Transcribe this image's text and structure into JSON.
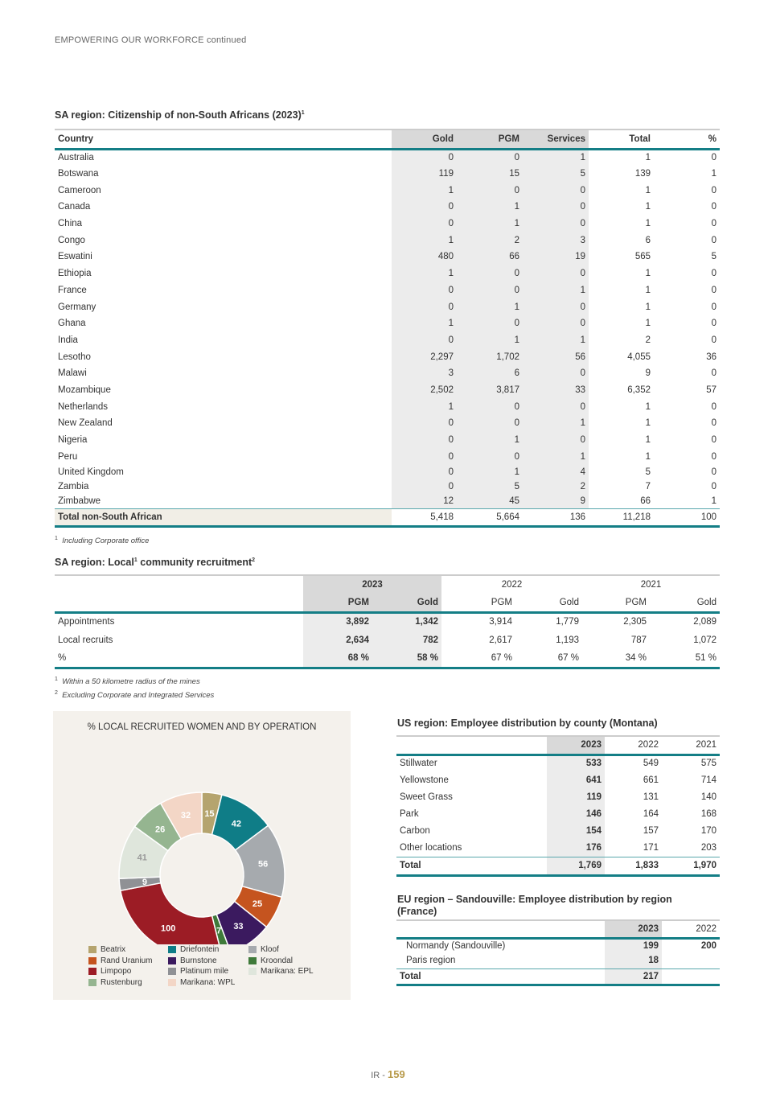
{
  "running_header": "EMPOWERING OUR WORKFORCE continued",
  "citizenship": {
    "title": "SA region: Citizenship of non-South Africans (2023)",
    "title_sup": "1",
    "headers": [
      "Country",
      "Gold",
      "PGM",
      "Services",
      "Total",
      "%"
    ],
    "rows": [
      [
        "Australia",
        "0",
        "0",
        "1",
        "1",
        "0"
      ],
      [
        "Botswana",
        "119",
        "15",
        "5",
        "139",
        "1"
      ],
      [
        "Cameroon",
        "1",
        "0",
        "0",
        "1",
        "0"
      ],
      [
        "Canada",
        "0",
        "1",
        "0",
        "1",
        "0"
      ],
      [
        "China",
        "0",
        "1",
        "0",
        "1",
        "0"
      ],
      [
        "Congo",
        "1",
        "2",
        "3",
        "6",
        "0"
      ],
      [
        "Eswatini",
        "480",
        "66",
        "19",
        "565",
        "5"
      ],
      [
        "Ethiopia",
        "1",
        "0",
        "0",
        "1",
        "0"
      ],
      [
        "France",
        "0",
        "0",
        "1",
        "1",
        "0"
      ],
      [
        "Germany",
        "0",
        "1",
        "0",
        "1",
        "0"
      ],
      [
        "Ghana",
        "1",
        "0",
        "0",
        "1",
        "0"
      ],
      [
        "India",
        "0",
        "1",
        "1",
        "2",
        "0"
      ],
      [
        "Lesotho",
        "2,297",
        "1,702",
        "56",
        "4,055",
        "36"
      ],
      [
        "Malawi",
        "3",
        "6",
        "0",
        "9",
        "0"
      ],
      [
        "Mozambique",
        "2,502",
        "3,817",
        "33",
        "6,352",
        "57"
      ],
      [
        "Netherlands",
        "1",
        "0",
        "0",
        "1",
        "0"
      ],
      [
        "New Zealand",
        "0",
        "0",
        "1",
        "1",
        "0"
      ],
      [
        "Nigeria",
        "0",
        "1",
        "0",
        "1",
        "0"
      ],
      [
        "Peru",
        "0",
        "0",
        "1",
        "1",
        "0"
      ],
      [
        "United Kingdom",
        "0",
        "1",
        "4",
        "5",
        "0"
      ],
      [
        "Zambia",
        "0",
        "5",
        "2",
        "7",
        "0"
      ],
      [
        "Zimbabwe",
        "12",
        "45",
        "9",
        "66",
        "1"
      ]
    ],
    "total": [
      "Total non-South African",
      "5,418",
      "5,664",
      "136",
      "11,218",
      "100"
    ],
    "footnote_num": "1",
    "footnote": "Including Corporate office"
  },
  "local": {
    "title_a": "SA region: Local",
    "sup1": "1",
    "title_b": " community recruitment",
    "sup2": "2",
    "years": [
      "2023",
      "2022",
      "2021"
    ],
    "subheaders": [
      "PGM",
      "Gold",
      "PGM",
      "Gold",
      "PGM",
      "Gold"
    ],
    "rows": [
      [
        "Appointments",
        "3,892",
        "1,342",
        "3,914",
        "1,779",
        "2,305",
        "2,089"
      ],
      [
        "Local recruits",
        "2,634",
        "782",
        "2,617",
        "1,193",
        "787",
        "1,072"
      ],
      [
        "%",
        "68 %",
        "58 %",
        "67 %",
        "67 %",
        "34 %",
        "51 %"
      ]
    ],
    "footnotes": [
      {
        "n": "1",
        "t": "Within a 50 kilometre radius of the mines"
      },
      {
        "n": "2",
        "t": "Excluding Corporate and Integrated Services"
      }
    ]
  },
  "chart_data": {
    "type": "pie",
    "variant": "donut",
    "title": "% LOCAL RECRUITED WOMEN AND BY OPERATION",
    "slices": [
      {
        "label": "Beatrix",
        "value": 15,
        "color": "#b5a46e"
      },
      {
        "label": "Driefontein",
        "value": 42,
        "color": "#0f7d87"
      },
      {
        "label": "Kloof",
        "value": 56,
        "color": "#a6aaae"
      },
      {
        "label": "Rand Uranium",
        "value": 25,
        "color": "#c5541f"
      },
      {
        "label": "Burnstone",
        "value": 33,
        "color": "#3b1a5f"
      },
      {
        "label": "Kroondal",
        "value": 7,
        "color": "#3f7a3a"
      },
      {
        "label": "Limpopo",
        "value": 100,
        "color": "#9c1c25"
      },
      {
        "label": "Platinum mile",
        "value": 9,
        "color": "#8f9195"
      },
      {
        "label": "Marikana: EPL",
        "value": 41,
        "color": "#dfe6dc"
      },
      {
        "label": "Rustenburg",
        "value": 26,
        "color": "#95b590"
      },
      {
        "label": "Marikana: WPL",
        "value": 32,
        "color": "#f3d6c6"
      }
    ],
    "legend_order": [
      "Beatrix",
      "Driefontein",
      "Kloof",
      "Rand Uranium",
      "Burnstone",
      "Kroondal",
      "Limpopo",
      "Platinum mile",
      "Marikana: EPL",
      "Rustenburg",
      "Marikana: WPL"
    ],
    "legend_placement": "bottom"
  },
  "us": {
    "title": "US region: Employee distribution by county (Montana)",
    "headers": [
      "",
      "2023",
      "2022",
      "2021"
    ],
    "rows": [
      [
        "Stillwater",
        "533",
        "549",
        "575"
      ],
      [
        "Yellowstone",
        "641",
        "661",
        "714"
      ],
      [
        "Sweet Grass",
        "119",
        "131",
        "140"
      ],
      [
        "Park",
        "146",
        "164",
        "168"
      ],
      [
        "Carbon",
        "154",
        "157",
        "170"
      ],
      [
        "Other locations",
        "176",
        "171",
        "203"
      ]
    ],
    "total": [
      "Total",
      "1,769",
      "1,833",
      "1,970"
    ]
  },
  "eu": {
    "title": "EU region – Sandouville: Employee distribution by region (France)",
    "headers": [
      "",
      "2023",
      "2022"
    ],
    "rows": [
      [
        "Normandy (Sandouville)",
        "199",
        "200"
      ],
      [
        "Paris region",
        "18",
        ""
      ]
    ],
    "total": [
      "Total",
      "217",
      ""
    ]
  },
  "page": {
    "prefix": "IR - ",
    "number": "159"
  }
}
